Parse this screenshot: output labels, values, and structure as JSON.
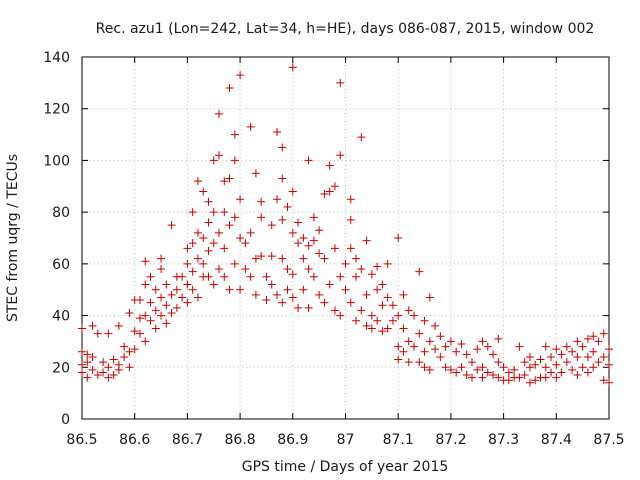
{
  "chart_data": {
    "type": "scatter",
    "title": "Rec. azu1 (Lon=242, Lat=34, h=HE), days 086-087, 2015, window 002",
    "xlabel": "GPS time / Days of year 2015",
    "ylabel": "STEC from uqrg / TECUs",
    "xlim": [
      86.5,
      87.5
    ],
    "ylim": [
      0,
      140
    ],
    "x_ticks": [
      86.5,
      86.6,
      86.7,
      86.8,
      86.9,
      87.0,
      87.1,
      87.2,
      87.3,
      87.4,
      87.5
    ],
    "x_tick_labels": [
      "86.5",
      "86.6",
      "86.7",
      "86.8",
      "86.9",
      "87",
      "87.1",
      "87.2",
      "87.3",
      "87.4",
      "87.5"
    ],
    "y_ticks": [
      0,
      20,
      40,
      60,
      80,
      100,
      120,
      140
    ],
    "y_tick_labels": [
      "0",
      "20",
      "40",
      "60",
      "80",
      "100",
      "120",
      "140"
    ],
    "grid": true,
    "marker": "+",
    "color": "#cc0000",
    "series": [
      {
        "name": "STEC",
        "points": [
          [
            86.5,
            35
          ],
          [
            86.5,
            26
          ],
          [
            86.5,
            21
          ],
          [
            86.5,
            18
          ],
          [
            86.51,
            25
          ],
          [
            86.51,
            16
          ],
          [
            86.51,
            22
          ],
          [
            86.52,
            36
          ],
          [
            86.52,
            19
          ],
          [
            86.52,
            24
          ],
          [
            86.53,
            17
          ],
          [
            86.53,
            33
          ],
          [
            86.54,
            22
          ],
          [
            86.54,
            18
          ],
          [
            86.55,
            33
          ],
          [
            86.55,
            20
          ],
          [
            86.55,
            16
          ],
          [
            86.56,
            23
          ],
          [
            86.56,
            17
          ],
          [
            86.57,
            36
          ],
          [
            86.57,
            21
          ],
          [
            86.57,
            19
          ],
          [
            86.58,
            28
          ],
          [
            86.58,
            24
          ],
          [
            86.59,
            41
          ],
          [
            86.59,
            26
          ],
          [
            86.59,
            20
          ],
          [
            86.6,
            46
          ],
          [
            86.6,
            34
          ],
          [
            86.6,
            27
          ],
          [
            86.61,
            46
          ],
          [
            86.61,
            39
          ],
          [
            86.61,
            33
          ],
          [
            86.62,
            61
          ],
          [
            86.62,
            52
          ],
          [
            86.62,
            40
          ],
          [
            86.62,
            30
          ],
          [
            86.63,
            55
          ],
          [
            86.63,
            45
          ],
          [
            86.63,
            38
          ],
          [
            86.64,
            50
          ],
          [
            86.64,
            42
          ],
          [
            86.64,
            35
          ],
          [
            86.65,
            62
          ],
          [
            86.65,
            58
          ],
          [
            86.65,
            47
          ],
          [
            86.65,
            40
          ],
          [
            86.66,
            52
          ],
          [
            86.66,
            44
          ],
          [
            86.66,
            37
          ],
          [
            86.67,
            75
          ],
          [
            86.67,
            48
          ],
          [
            86.67,
            41
          ],
          [
            86.68,
            55
          ],
          [
            86.68,
            50
          ],
          [
            86.68,
            43
          ],
          [
            86.69,
            55
          ],
          [
            86.69,
            47
          ],
          [
            86.7,
            66
          ],
          [
            86.7,
            60
          ],
          [
            86.7,
            52
          ],
          [
            86.7,
            45
          ],
          [
            86.71,
            80
          ],
          [
            86.71,
            68
          ],
          [
            86.71,
            57
          ],
          [
            86.71,
            50
          ],
          [
            86.72,
            92
          ],
          [
            86.72,
            72
          ],
          [
            86.72,
            62
          ],
          [
            86.72,
            47
          ],
          [
            86.73,
            88
          ],
          [
            86.73,
            70
          ],
          [
            86.73,
            60
          ],
          [
            86.73,
            55
          ],
          [
            86.74,
            84
          ],
          [
            86.74,
            76
          ],
          [
            86.74,
            65
          ],
          [
            86.74,
            55
          ],
          [
            86.75,
            100
          ],
          [
            86.75,
            80
          ],
          [
            86.75,
            68
          ],
          [
            86.75,
            52
          ],
          [
            86.76,
            118
          ],
          [
            86.76,
            102
          ],
          [
            86.76,
            72
          ],
          [
            86.76,
            58
          ],
          [
            86.77,
            92
          ],
          [
            86.77,
            80
          ],
          [
            86.77,
            66
          ],
          [
            86.77,
            55
          ],
          [
            86.78,
            128
          ],
          [
            86.78,
            93
          ],
          [
            86.78,
            75
          ],
          [
            86.78,
            50
          ],
          [
            86.79,
            110
          ],
          [
            86.79,
            100
          ],
          [
            86.79,
            78
          ],
          [
            86.79,
            60
          ],
          [
            86.8,
            133
          ],
          [
            86.8,
            85
          ],
          [
            86.8,
            70
          ],
          [
            86.8,
            50
          ],
          [
            86.81,
            68
          ],
          [
            86.81,
            58
          ],
          [
            86.82,
            113
          ],
          [
            86.82,
            72
          ],
          [
            86.82,
            55
          ],
          [
            86.83,
            95
          ],
          [
            86.83,
            62
          ],
          [
            86.83,
            48
          ],
          [
            86.84,
            84
          ],
          [
            86.84,
            78
          ],
          [
            86.84,
            63
          ],
          [
            86.85,
            55
          ],
          [
            86.85,
            46
          ],
          [
            86.86,
            75
          ],
          [
            86.86,
            63
          ],
          [
            86.86,
            52
          ],
          [
            86.87,
            111
          ],
          [
            86.87,
            85
          ],
          [
            86.87,
            48
          ],
          [
            86.88,
            105
          ],
          [
            86.88,
            93
          ],
          [
            86.88,
            77
          ],
          [
            86.88,
            62
          ],
          [
            86.88,
            45
          ],
          [
            86.89,
            82
          ],
          [
            86.89,
            58
          ],
          [
            86.89,
            50
          ],
          [
            86.9,
            136
          ],
          [
            86.9,
            88
          ],
          [
            86.9,
            72
          ],
          [
            86.9,
            56
          ],
          [
            86.9,
            47
          ],
          [
            86.91,
            76
          ],
          [
            86.91,
            68
          ],
          [
            86.91,
            43
          ],
          [
            86.92,
            70
          ],
          [
            86.92,
            62
          ],
          [
            86.92,
            50
          ],
          [
            86.93,
            100
          ],
          [
            86.93,
            67
          ],
          [
            86.93,
            58
          ],
          [
            86.93,
            43
          ],
          [
            86.94,
            78
          ],
          [
            86.94,
            69
          ],
          [
            86.94,
            55
          ],
          [
            86.95,
            73
          ],
          [
            86.95,
            64
          ],
          [
            86.95,
            48
          ],
          [
            86.96,
            87
          ],
          [
            86.96,
            62
          ],
          [
            86.96,
            45
          ],
          [
            86.97,
            98
          ],
          [
            86.97,
            88
          ],
          [
            86.97,
            52
          ],
          [
            86.98,
            90
          ],
          [
            86.98,
            66
          ],
          [
            86.98,
            42
          ],
          [
            86.99,
            130
          ],
          [
            86.99,
            102
          ],
          [
            86.99,
            55
          ],
          [
            86.99,
            40
          ],
          [
            87.0,
            60
          ],
          [
            87.0,
            50
          ],
          [
            87.01,
            85
          ],
          [
            87.01,
            77
          ],
          [
            87.01,
            66
          ],
          [
            87.01,
            45
          ],
          [
            87.02,
            62
          ],
          [
            87.02,
            55
          ],
          [
            87.02,
            38
          ],
          [
            87.03,
            109
          ],
          [
            87.03,
            58
          ],
          [
            87.03,
            42
          ],
          [
            87.04,
            69
          ],
          [
            87.04,
            48
          ],
          [
            87.04,
            36
          ],
          [
            87.05,
            56
          ],
          [
            87.05,
            40
          ],
          [
            87.05,
            35
          ],
          [
            87.06,
            59
          ],
          [
            87.06,
            50
          ],
          [
            87.06,
            38
          ],
          [
            87.07,
            52
          ],
          [
            87.07,
            44
          ],
          [
            87.07,
            34
          ],
          [
            87.08,
            60
          ],
          [
            87.08,
            47
          ],
          [
            87.08,
            35
          ],
          [
            87.09,
            44
          ],
          [
            87.09,
            38
          ],
          [
            87.1,
            70
          ],
          [
            87.1,
            40
          ],
          [
            87.1,
            28
          ],
          [
            87.1,
            23
          ],
          [
            87.11,
            48
          ],
          [
            87.11,
            35
          ],
          [
            87.11,
            26
          ],
          [
            87.12,
            42
          ],
          [
            87.12,
            30
          ],
          [
            87.12,
            22
          ],
          [
            87.13,
            40
          ],
          [
            87.13,
            28
          ],
          [
            87.14,
            57
          ],
          [
            87.14,
            33
          ],
          [
            87.14,
            22
          ],
          [
            87.15,
            38
          ],
          [
            87.15,
            26
          ],
          [
            87.15,
            20
          ],
          [
            87.16,
            47
          ],
          [
            87.16,
            30
          ],
          [
            87.16,
            19
          ],
          [
            87.17,
            36
          ],
          [
            87.17,
            27
          ],
          [
            87.18,
            32
          ],
          [
            87.18,
            24
          ],
          [
            87.19,
            28
          ],
          [
            87.19,
            20
          ],
          [
            87.2,
            30
          ],
          [
            87.2,
            19
          ],
          [
            87.21,
            26
          ],
          [
            87.21,
            18
          ],
          [
            87.22,
            29
          ],
          [
            87.22,
            20
          ],
          [
            87.23,
            25
          ],
          [
            87.23,
            17
          ],
          [
            87.24,
            22
          ],
          [
            87.24,
            16
          ],
          [
            87.25,
            27
          ],
          [
            87.25,
            19
          ],
          [
            87.26,
            30
          ],
          [
            87.26,
            20
          ],
          [
            87.26,
            16
          ],
          [
            87.27,
            28
          ],
          [
            87.27,
            18
          ],
          [
            87.28,
            25
          ],
          [
            87.28,
            17
          ],
          [
            87.29,
            31
          ],
          [
            87.29,
            22
          ],
          [
            87.29,
            16
          ],
          [
            87.3,
            20
          ],
          [
            87.3,
            15
          ],
          [
            87.31,
            18
          ],
          [
            87.31,
            15
          ],
          [
            87.32,
            19
          ],
          [
            87.32,
            16
          ],
          [
            87.33,
            28
          ],
          [
            87.33,
            16
          ],
          [
            87.34,
            22
          ],
          [
            87.34,
            17
          ],
          [
            87.35,
            24
          ],
          [
            87.35,
            20
          ],
          [
            87.35,
            14
          ],
          [
            87.36,
            21
          ],
          [
            87.36,
            15
          ],
          [
            87.37,
            23
          ],
          [
            87.37,
            16
          ],
          [
            87.38,
            28
          ],
          [
            87.38,
            20
          ],
          [
            87.38,
            16
          ],
          [
            87.39,
            24
          ],
          [
            87.39,
            18
          ],
          [
            87.4,
            27
          ],
          [
            87.4,
            21
          ],
          [
            87.4,
            16
          ],
          [
            87.41,
            25
          ],
          [
            87.41,
            18
          ],
          [
            87.42,
            28
          ],
          [
            87.42,
            22
          ],
          [
            87.43,
            26
          ],
          [
            87.43,
            19
          ],
          [
            87.44,
            30
          ],
          [
            87.44,
            24
          ],
          [
            87.44,
            17
          ],
          [
            87.45,
            28
          ],
          [
            87.45,
            20
          ],
          [
            87.46,
            31
          ],
          [
            87.46,
            24
          ],
          [
            87.46,
            18
          ],
          [
            87.47,
            32
          ],
          [
            87.47,
            26
          ],
          [
            87.47,
            20
          ],
          [
            87.48,
            30
          ],
          [
            87.48,
            22
          ],
          [
            87.49,
            33
          ],
          [
            87.49,
            24
          ],
          [
            87.49,
            15
          ],
          [
            87.5,
            27
          ],
          [
            87.5,
            21
          ],
          [
            87.5,
            14
          ]
        ]
      }
    ]
  }
}
